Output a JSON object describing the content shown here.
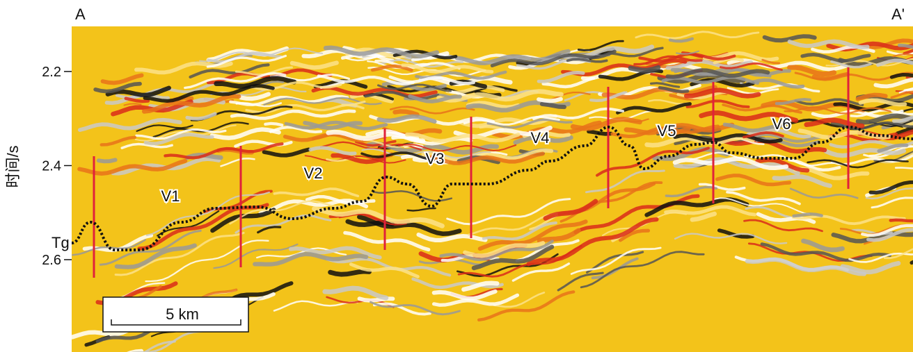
{
  "section": {
    "start_label": "A",
    "end_label": "A'"
  },
  "y_axis": {
    "label": "时间/s",
    "ticks": [
      2.2,
      2.4,
      2.6
    ]
  },
  "annotations": [
    "V1",
    "V2",
    "V3",
    "V4",
    "V5",
    "V6"
  ],
  "horizon": "Tg",
  "scale_bar": "5 km"
}
